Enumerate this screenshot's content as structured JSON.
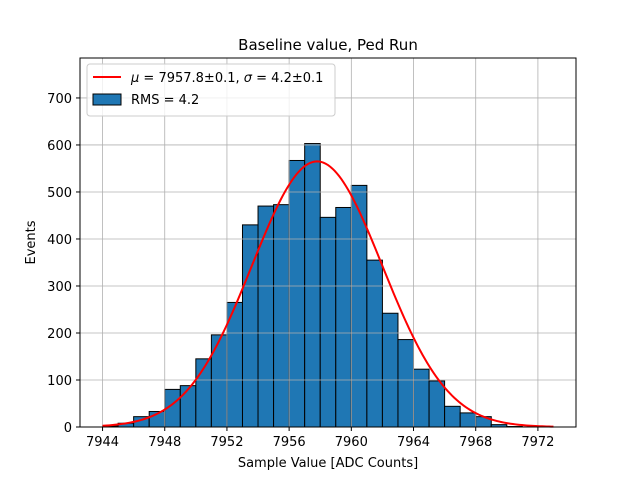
{
  "chart_data": {
    "type": "bar",
    "title": "Baseline value, Ped Run",
    "xlabel": "Sample Value [ADC Counts]",
    "ylabel": "Events",
    "xlim": [
      7942.55,
      7974.45
    ],
    "ylim": [
      0,
      785
    ],
    "xticks": [
      7944,
      7948,
      7952,
      7956,
      7960,
      7964,
      7968,
      7972
    ],
    "yticks": [
      0,
      100,
      200,
      300,
      400,
      500,
      600,
      700
    ],
    "grid": true,
    "legend_position": "top-left",
    "bar_color": "#1f77b4",
    "fit_color": "#ff0000",
    "bins": {
      "start": 7944.0,
      "width": 1.0,
      "values": [
        2,
        8,
        22,
        33,
        80,
        88,
        145,
        196,
        265,
        430,
        470,
        473,
        567,
        603,
        446,
        467,
        514,
        355,
        242,
        186,
        123,
        98,
        44,
        30,
        22,
        5,
        1,
        0,
        0
      ]
    },
    "fit": {
      "mu": 7957.8,
      "sigma": 4.2,
      "amplitude": 565,
      "x_range": [
        7944,
        7973
      ]
    },
    "legend": [
      {
        "kind": "line",
        "label_parts": {
          "pre": "μ",
          "mid1": " = 7957.8±0.1, ",
          "sig": "σ",
          "mid2": " = 4.2±0.1"
        }
      },
      {
        "kind": "patch",
        "label": "RMS = 4.2"
      }
    ]
  }
}
